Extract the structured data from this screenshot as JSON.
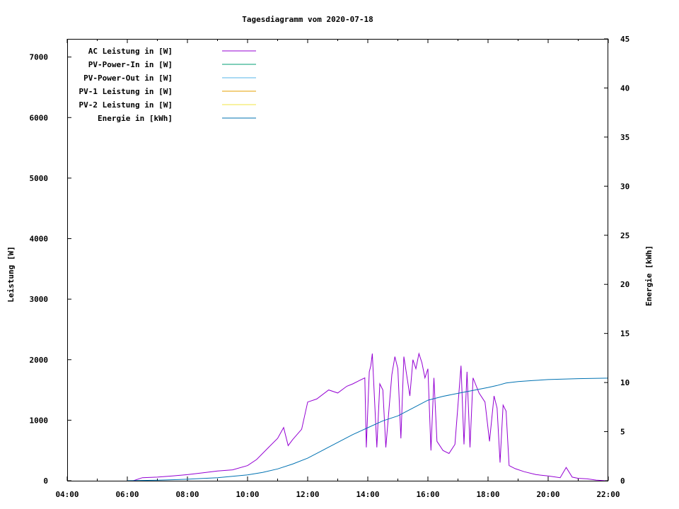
{
  "chart_data": {
    "type": "line",
    "title": "Tagesdiagramm vom 2020-07-18",
    "xlabel": "",
    "ylabel": "Leistung [W]",
    "y2label": "Energie [kWh]",
    "x_ticks": [
      "04:00",
      "06:00",
      "08:00",
      "10:00",
      "12:00",
      "14:00",
      "16:00",
      "18:00",
      "20:00",
      "22:00"
    ],
    "xlim_hours": [
      4,
      22
    ],
    "ylim": [
      0,
      7300
    ],
    "y_ticks": [
      0,
      1000,
      2000,
      3000,
      4000,
      5000,
      6000,
      7000
    ],
    "y2lim": [
      0,
      45
    ],
    "y2_ticks": [
      0,
      5,
      10,
      15,
      20,
      25,
      30,
      35,
      40,
      45
    ],
    "legend_position": "top-left",
    "series": [
      {
        "name": "AC Leistung in [W]",
        "color": "#9400d3",
        "axis": "left",
        "x": [
          6.2,
          6.5,
          7.0,
          7.5,
          8.0,
          8.5,
          9.0,
          9.5,
          10.0,
          10.3,
          10.7,
          11.0,
          11.2,
          11.35,
          11.5,
          11.8,
          12.0,
          12.3,
          12.7,
          13.0,
          13.3,
          13.5,
          13.7,
          13.9,
          13.95,
          14.05,
          14.1,
          14.15,
          14.3,
          14.4,
          14.5,
          14.6,
          14.8,
          14.9,
          15.0,
          15.1,
          15.2,
          15.4,
          15.5,
          15.6,
          15.7,
          15.8,
          15.9,
          16.0,
          16.1,
          16.2,
          16.3,
          16.5,
          16.7,
          16.9,
          17.1,
          17.2,
          17.3,
          17.4,
          17.5,
          17.7,
          17.9,
          18.05,
          18.2,
          18.3,
          18.4,
          18.5,
          18.6,
          18.7,
          18.9,
          19.2,
          19.6,
          20.0,
          20.4,
          20.6,
          20.8,
          21.0,
          21.3,
          21.6,
          21.9
        ],
        "values": [
          0,
          50,
          60,
          80,
          100,
          130,
          160,
          180,
          250,
          350,
          550,
          700,
          880,
          580,
          680,
          850,
          1300,
          1350,
          1500,
          1450,
          1560,
          1600,
          1650,
          1700,
          550,
          1800,
          1900,
          2100,
          550,
          1600,
          1500,
          550,
          1750,
          2050,
          1850,
          700,
          2050,
          1400,
          2000,
          1850,
          2100,
          1950,
          1700,
          1850,
          500,
          1700,
          650,
          500,
          450,
          600,
          1900,
          600,
          1800,
          550,
          1700,
          1450,
          1300,
          650,
          1400,
          1200,
          300,
          1250,
          1150,
          250,
          200,
          150,
          100,
          80,
          50,
          220,
          60,
          40,
          30,
          10,
          0
        ]
      },
      {
        "name": "PV-Power-In in [W]",
        "color": "#009e73",
        "axis": "left",
        "x": [],
        "values": []
      },
      {
        "name": "PV-Power-Out in [W]",
        "color": "#56b4e9",
        "axis": "left",
        "x": [],
        "values": []
      },
      {
        "name": "PV-1 Leistung in [W]",
        "color": "#e69f00",
        "axis": "left",
        "x": [],
        "values": []
      },
      {
        "name": "PV-2 Leistung in [W]",
        "color": "#f0e442",
        "axis": "left",
        "x": [],
        "values": []
      },
      {
        "name": "Energie in [kWh]",
        "color": "#0072b2",
        "axis": "right",
        "x": [
          6.0,
          7.0,
          8.0,
          9.0,
          10.0,
          10.5,
          11.0,
          11.5,
          12.0,
          12.5,
          13.0,
          13.5,
          14.0,
          14.5,
          15.0,
          15.5,
          16.0,
          16.5,
          17.0,
          17.5,
          18.0,
          18.3,
          18.6,
          19.0,
          19.5,
          20.0,
          21.0,
          22.0
        ],
        "values": [
          0,
          0.05,
          0.15,
          0.3,
          0.6,
          0.85,
          1.2,
          1.7,
          2.3,
          3.1,
          3.9,
          4.7,
          5.4,
          6.1,
          6.6,
          7.4,
          8.2,
          8.6,
          8.9,
          9.2,
          9.5,
          9.7,
          9.95,
          10.1,
          10.2,
          10.3,
          10.4,
          10.45
        ]
      }
    ]
  }
}
